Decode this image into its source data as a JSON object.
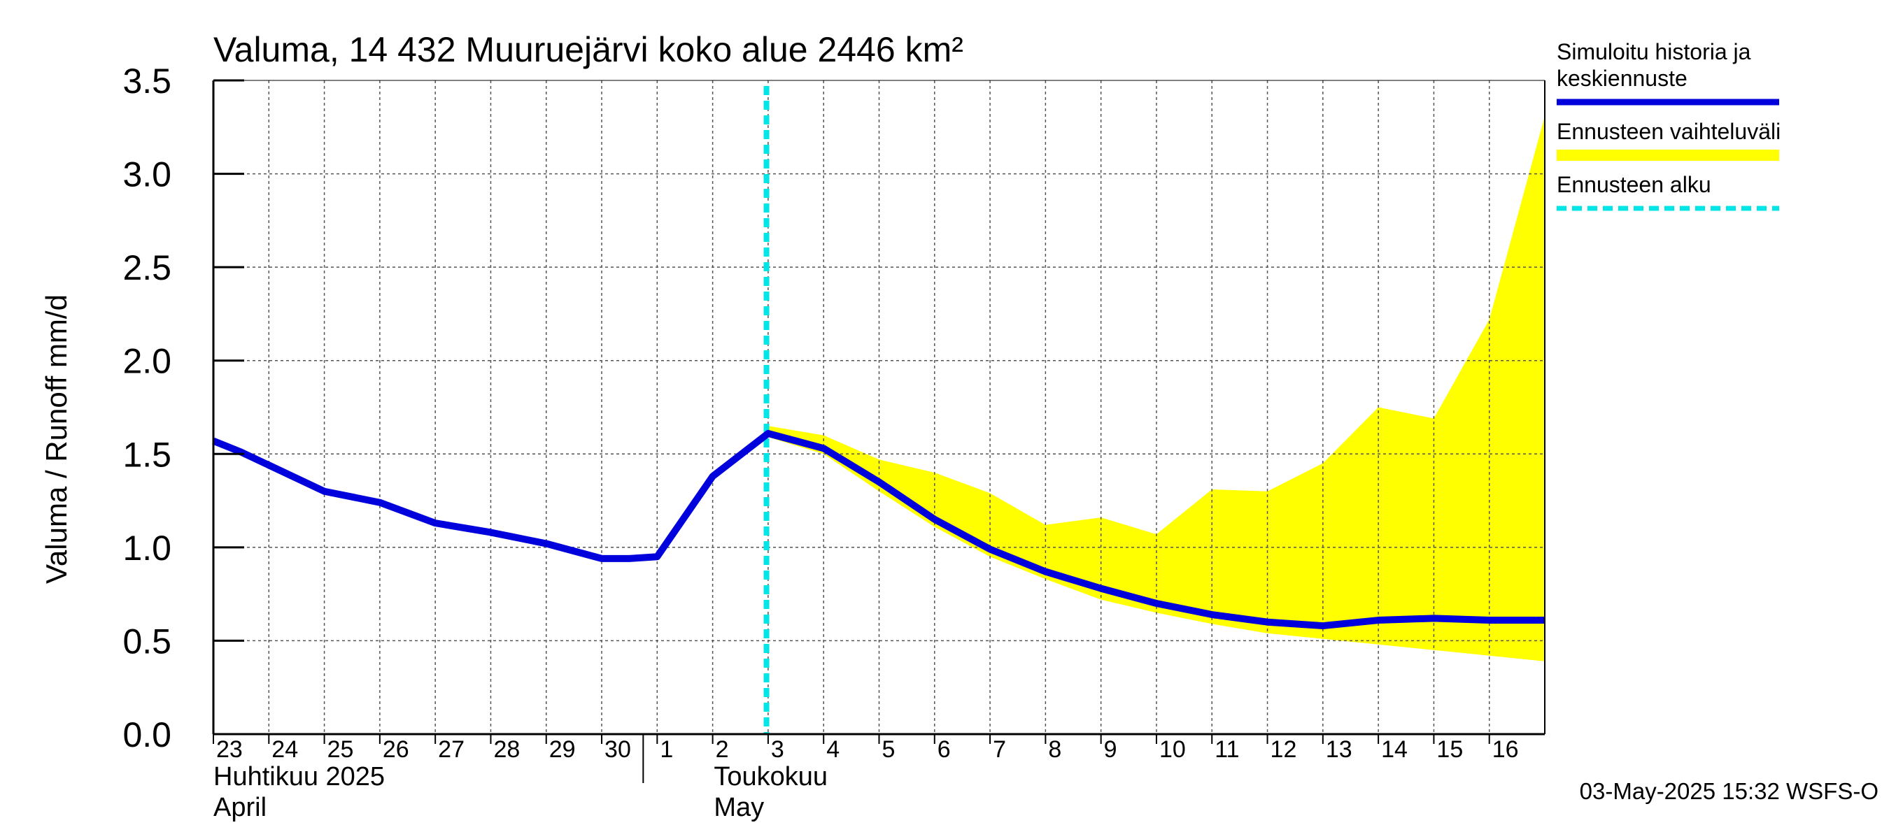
{
  "chart_data": {
    "type": "line",
    "title": "Valuma, 14 432 Muuruejärvi koko alue 2446 km²",
    "ylabel": "Valuma / Runoff     mm/d",
    "ylim": [
      0,
      3.5
    ],
    "yticks": [
      0.0,
      0.5,
      1.0,
      1.5,
      2.0,
      2.5,
      3.0,
      3.5
    ],
    "ytick_labels": [
      "0.0",
      "0.5",
      "1.0",
      "1.5",
      "2.0",
      "2.5",
      "3.0",
      "3.5"
    ],
    "xlim_day_index": [
      0,
      24
    ],
    "day_labels": [
      "23",
      "24",
      "25",
      "26",
      "27",
      "28",
      "29",
      "30",
      "1",
      "2",
      "3",
      "4",
      "5",
      "6",
      "7",
      "8",
      "9",
      "10",
      "11",
      "12",
      "13",
      "14",
      "15",
      "16"
    ],
    "months": [
      {
        "line1": "Huhtikuu  2025",
        "line2": "April",
        "start_index": 0
      },
      {
        "line1": "Toukokuu",
        "line2": "May",
        "start_index": 8
      }
    ],
    "forecast_start_index": 10,
    "series": [
      {
        "name": "Simuloitu historia ja keskiennuste",
        "color": "#0000dd",
        "x": [
          0,
          0.5,
          1,
          2,
          3,
          4,
          5,
          6,
          7,
          7.5,
          8,
          9,
          10,
          11,
          12,
          13,
          14,
          15,
          16,
          17,
          18,
          19,
          20,
          21,
          22,
          23,
          24
        ],
        "values": [
          1.57,
          1.51,
          1.44,
          1.3,
          1.24,
          1.13,
          1.08,
          1.02,
          0.94,
          0.94,
          0.95,
          1.38,
          1.61,
          1.53,
          1.35,
          1.15,
          0.99,
          0.87,
          0.78,
          0.7,
          0.64,
          0.6,
          0.58,
          0.61,
          0.62,
          0.61,
          0.61
        ]
      }
    ],
    "band": {
      "name": "Ennusteen vaihteluväli",
      "color": "#ffff00",
      "x": [
        10,
        11,
        12,
        13,
        14,
        15,
        16,
        17,
        18,
        19,
        20,
        21,
        22,
        23,
        24
      ],
      "upper": [
        1.65,
        1.6,
        1.47,
        1.4,
        1.29,
        1.12,
        1.16,
        1.07,
        1.31,
        1.3,
        1.45,
        1.75,
        1.69,
        2.22,
        3.31
      ],
      "lower": [
        1.59,
        1.5,
        1.3,
        1.11,
        0.95,
        0.83,
        0.72,
        0.65,
        0.59,
        0.54,
        0.51,
        0.48,
        0.45,
        0.42,
        0.39
      ]
    },
    "legend": [
      {
        "lines": [
          "Simuloitu historia ja",
          "keskiennuste"
        ],
        "color": "#0000dd",
        "style": "solid"
      },
      {
        "lines": [
          "Ennusteen vaihteluväli"
        ],
        "color": "#ffff00",
        "style": "band"
      },
      {
        "lines": [
          "Ennusteen alku"
        ],
        "color": "#00e5e5",
        "style": "dashed"
      }
    ],
    "legend_position": "right",
    "grid": true
  },
  "footer": "03-May-2025 15:32 WSFS-O",
  "colors": {
    "series": "#0000dd",
    "band": "#ffff00",
    "forecast_start": "#00e5e5",
    "grid": "#555555"
  }
}
